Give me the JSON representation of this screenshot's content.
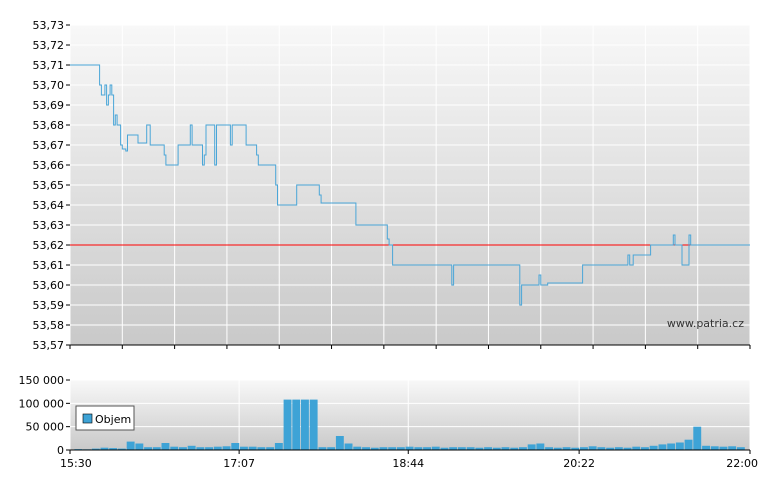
{
  "watermark": "www.patria.cz",
  "colors": {
    "line": "#4aa6d8",
    "reference": "#ff0000",
    "volume": "#3ea3d6",
    "plot_bg_top": "#f8f8f8",
    "plot_bg_bottom": "#c9c9c9",
    "grid": "#ffffff",
    "axis": "#000000"
  },
  "chart_data": [
    {
      "type": "line",
      "name": "price",
      "ylim": [
        53.57,
        53.73
      ],
      "y_ticks": [
        "53,73",
        "53,72",
        "53,71",
        "53,70",
        "53,69",
        "53,68",
        "53,67",
        "53,66",
        "53,65",
        "53,64",
        "53,63",
        "53,62",
        "53,61",
        "53,60",
        "53,59",
        "53,58",
        "53,57"
      ],
      "x_range": [
        "15:30",
        "22:00"
      ],
      "reference_line": 53.62,
      "grid": true,
      "series": [
        {
          "x": [
            "15:30",
            "15:47",
            "15:48",
            "15:50",
            "15:51",
            "15:52",
            "15:53",
            "15:54",
            "15:55",
            "15:56",
            "15:57",
            "15:59",
            "16:00",
            "16:02",
            "16:03",
            "16:04",
            "16:05",
            "16:08",
            "16:09",
            "16:14",
            "16:16",
            "16:24",
            "16:25",
            "16:26",
            "16:32",
            "16:38",
            "16:39",
            "16:40",
            "16:46",
            "16:47",
            "16:48",
            "16:53",
            "16:54",
            "17:02",
            "17:03",
            "17:10",
            "17:11",
            "17:17",
            "17:18",
            "17:28",
            "17:29",
            "17:40",
            "17:50",
            "17:53",
            "17:54",
            "18:12",
            "18:14",
            "18:32",
            "18:33",
            "18:35",
            "18:36",
            "18:39",
            "19:09",
            "19:10",
            "19:17",
            "19:18",
            "19:48",
            "19:49",
            "19:52",
            "19:59",
            "20:00",
            "20:03",
            "20:04",
            "20:24",
            "20:25",
            "20:50",
            "20:51",
            "20:52",
            "20:53",
            "21:03",
            "21:04",
            "21:16",
            "21:17",
            "21:21",
            "21:22",
            "21:25",
            "21:26",
            "21:42",
            "21:43",
            "21:58",
            "22:00"
          ],
          "y": [
            53.71,
            53.7,
            53.695,
            53.7,
            53.69,
            53.695,
            53.7,
            53.695,
            53.68,
            53.685,
            53.68,
            53.67,
            53.668,
            53.667,
            53.675,
            53.675,
            53.675,
            53.675,
            53.671,
            53.68,
            53.67,
            53.665,
            53.66,
            53.66,
            53.67,
            53.67,
            53.68,
            53.67,
            53.66,
            53.665,
            53.68,
            53.66,
            53.68,
            53.67,
            53.68,
            53.68,
            53.67,
            53.665,
            53.66,
            53.65,
            53.64,
            53.65,
            53.65,
            53.645,
            53.641,
            53.641,
            53.63,
            53.623,
            53.62,
            53.61,
            53.61,
            53.61,
            53.6,
            53.61,
            53.61,
            53.61,
            53.59,
            53.6,
            53.6,
            53.605,
            53.6,
            53.6,
            53.601,
            53.61,
            53.61,
            53.615,
            53.61,
            53.61,
            53.615,
            53.62,
            53.62,
            53.625,
            53.62,
            53.61,
            53.61,
            53.625,
            53.62,
            53.62,
            53.62,
            53.62,
            53.62
          ]
        }
      ]
    },
    {
      "type": "bar",
      "name": "volume",
      "ylim": [
        0,
        150000
      ],
      "y_ticks": [
        "150 000",
        "100 000",
        "50 000",
        "0"
      ],
      "x_ticks": [
        "15:30",
        "17:07",
        "18:44",
        "20:22",
        "22:00"
      ],
      "legend": {
        "label": "Objem",
        "placement": "left"
      },
      "grid": true,
      "series": [
        {
          "name": "Objem",
          "x": [
            "15:35",
            "15:40",
            "15:45",
            "15:50",
            "15:55",
            "16:00",
            "16:05",
            "16:10",
            "16:15",
            "16:20",
            "16:25",
            "16:30",
            "16:35",
            "16:40",
            "16:45",
            "16:50",
            "16:55",
            "17:00",
            "17:05",
            "17:10",
            "17:15",
            "17:20",
            "17:25",
            "17:30",
            "17:35",
            "17:40",
            "17:45",
            "17:50",
            "17:55",
            "18:00",
            "18:05",
            "18:10",
            "18:15",
            "18:20",
            "18:25",
            "18:30",
            "18:35",
            "18:40",
            "18:45",
            "18:50",
            "18:55",
            "19:00",
            "19:05",
            "19:10",
            "19:15",
            "19:20",
            "19:25",
            "19:30",
            "19:35",
            "19:40",
            "19:45",
            "19:50",
            "19:55",
            "20:00",
            "20:05",
            "20:10",
            "20:15",
            "20:20",
            "20:25",
            "20:30",
            "20:35",
            "20:40",
            "20:45",
            "20:50",
            "20:55",
            "21:00",
            "21:05",
            "21:10",
            "21:15",
            "21:20",
            "21:25",
            "21:30",
            "21:35",
            "21:40",
            "21:45",
            "21:50",
            "21:55"
          ],
          "values": [
            2000,
            1500,
            3000,
            5000,
            4000,
            3000,
            18000,
            14000,
            6000,
            6000,
            15000,
            7000,
            6000,
            9000,
            6000,
            6000,
            7000,
            8000,
            15000,
            7000,
            7000,
            6000,
            6000,
            15000,
            108000,
            108000,
            108000,
            108000,
            6000,
            6000,
            30000,
            14000,
            7000,
            6000,
            5000,
            6000,
            6000,
            6000,
            7000,
            6000,
            6000,
            7000,
            5000,
            6000,
            6000,
            6000,
            5000,
            6000,
            5000,
            6000,
            5000,
            6000,
            12000,
            14000,
            6000,
            5000,
            6000,
            5000,
            6000,
            8000,
            6000,
            5000,
            6000,
            5000,
            7000,
            6000,
            9000,
            12000,
            14000,
            16000,
            22000,
            50000,
            9000,
            8000,
            7000,
            8000,
            6000
          ]
        }
      ]
    }
  ]
}
